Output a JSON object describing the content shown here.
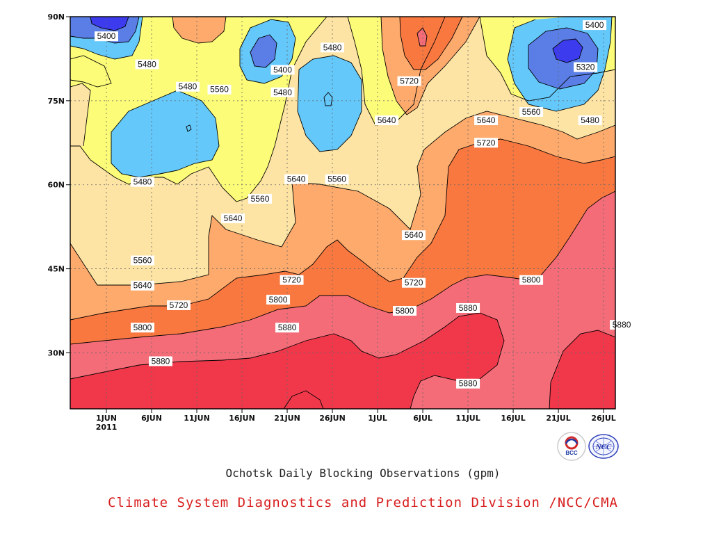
{
  "chart_data": {
    "type": "heatmap",
    "title": "Ochotsk Daily Blocking Observations (gpm)",
    "credit": "Climate System Diagnostics and Prediction Division /NCC/CMA",
    "x_ticks": [
      "1JUN",
      "6JUN",
      "11JUN",
      "16JUN",
      "21JUN",
      "26JUN",
      "1JUL",
      "6JUL",
      "11JUL",
      "16JUL",
      "21JUL",
      "26JUL"
    ],
    "x_tick_day": [
      1,
      6,
      11,
      16,
      21,
      26,
      31,
      36,
      41,
      46,
      51,
      56
    ],
    "x_year_label": "2011",
    "y_ticks": [
      "90N",
      "75N",
      "60N",
      "45N",
      "30N"
    ],
    "y_tick_lat": [
      90,
      75,
      60,
      45,
      30
    ],
    "xlim": [
      "2011-05-28",
      "2011-07-26"
    ],
    "ylim": [
      20,
      90
    ],
    "contour_levels": [
      5320,
      5400,
      5480,
      5560,
      5640,
      5720,
      5800,
      5880
    ],
    "colors": {
      "lt5320": "#3c3cee",
      "5320_5400": "#5a7ee6",
      "5400_5480": "#64c8fa",
      "5480_5560": "#fcfc78",
      "5560_5640": "#fde4a4",
      "5640_5720": "#fdaa6c",
      "5720_5800": "#f97840",
      "5800_5880": "#f36c78",
      "ge5880": "#f0384a"
    },
    "contour_labels": [
      {
        "text": "5400",
        "day": 1,
        "lat": 86.5
      },
      {
        "text": "5480",
        "day": 5.5,
        "lat": 81.5
      },
      {
        "text": "5480",
        "day": 10,
        "lat": 77.5
      },
      {
        "text": "5560",
        "day": 13.5,
        "lat": 77
      },
      {
        "text": "5400",
        "day": 20.5,
        "lat": 80.5
      },
      {
        "text": "5480",
        "day": 20.5,
        "lat": 76.5
      },
      {
        "text": "5480",
        "day": 26,
        "lat": 84.5
      },
      {
        "text": "5720",
        "day": 34.5,
        "lat": 78.5
      },
      {
        "text": "5640",
        "day": 32,
        "lat": 71.5
      },
      {
        "text": "5400",
        "day": 55,
        "lat": 88.5
      },
      {
        "text": "5320",
        "day": 54,
        "lat": 81
      },
      {
        "text": "5560",
        "day": 48,
        "lat": 73
      },
      {
        "text": "5480",
        "day": 54.5,
        "lat": 71.5
      },
      {
        "text": "5640",
        "day": 43,
        "lat": 71.5
      },
      {
        "text": "5720",
        "day": 43,
        "lat": 67.5
      },
      {
        "text": "5480",
        "day": 5,
        "lat": 60.5
      },
      {
        "text": "5640",
        "day": 22,
        "lat": 61
      },
      {
        "text": "5560",
        "day": 26.5,
        "lat": 61
      },
      {
        "text": "5560",
        "day": 18,
        "lat": 57.5
      },
      {
        "text": "5640",
        "day": 15,
        "lat": 54
      },
      {
        "text": "5640",
        "day": 35,
        "lat": 51
      },
      {
        "text": "5560",
        "day": 5,
        "lat": 46.5
      },
      {
        "text": "5640",
        "day": 5,
        "lat": 42
      },
      {
        "text": "5720",
        "day": 21.5,
        "lat": 43
      },
      {
        "text": "5720",
        "day": 35,
        "lat": 42.5
      },
      {
        "text": "5800",
        "day": 48,
        "lat": 43
      },
      {
        "text": "5720",
        "day": 9,
        "lat": 38.5
      },
      {
        "text": "5800",
        "day": 20,
        "lat": 39.5
      },
      {
        "text": "5800",
        "day": 34,
        "lat": 37.5
      },
      {
        "text": "5880",
        "day": 41,
        "lat": 38
      },
      {
        "text": "5800",
        "day": 5,
        "lat": 34.5
      },
      {
        "text": "5880",
        "day": 21,
        "lat": 34.5
      },
      {
        "text": "5880",
        "day": 58,
        "lat": 35
      },
      {
        "text": "5880",
        "day": 7,
        "lat": 28.5
      },
      {
        "text": "5880",
        "day": 41,
        "lat": 24.5
      }
    ]
  }
}
